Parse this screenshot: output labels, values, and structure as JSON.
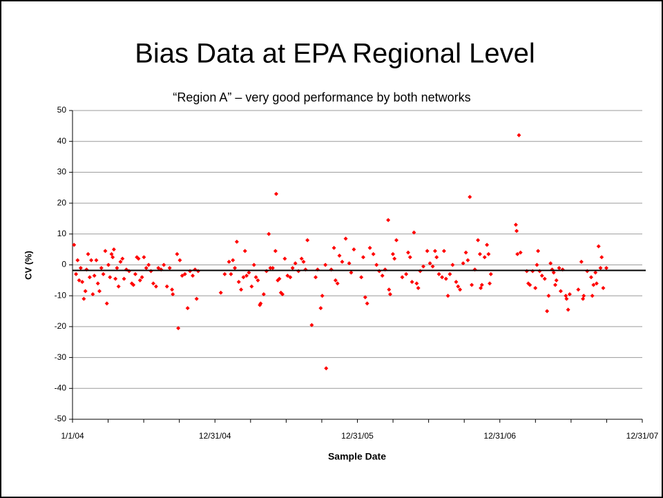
{
  "chart_data": {
    "type": "scatter",
    "title": "Bias Data at EPA Regional Level",
    "subtitle": "“Region A” – very good performance by both networks",
    "x_label": "Sample Date",
    "y_label": "CV (%)",
    "color": "#ff0000",
    "grid": true,
    "reference_line": -1.8,
    "ylim": [
      -50,
      50
    ],
    "yticks": [
      -50,
      -40,
      -30,
      -20,
      -10,
      0,
      10,
      20,
      30,
      40,
      50
    ],
    "xlim": [
      "2004-01-01",
      "2007-12-31"
    ],
    "xticks": [
      {
        "value": "2004-01-01",
        "label": "1/1/04"
      },
      {
        "value": "2004-12-31",
        "label": "12/31/04"
      },
      {
        "value": "2005-12-31",
        "label": "12/31/05"
      },
      {
        "value": "2006-12-31",
        "label": "12/31/06"
      },
      {
        "value": "2007-12-31",
        "label": "12/31/07"
      }
    ],
    "x": [
      "2004-01-05",
      "2004-01-10",
      "2004-01-14",
      "2004-01-18",
      "2004-01-22",
      "2004-01-26",
      "2004-01-30",
      "2004-02-03",
      "2004-02-06",
      "2004-02-10",
      "2004-02-14",
      "2004-02-18",
      "2004-02-22",
      "2004-02-26",
      "2004-03-02",
      "2004-03-06",
      "2004-03-10",
      "2004-03-15",
      "2004-03-20",
      "2004-03-25",
      "2004-03-29",
      "2004-04-02",
      "2004-04-06",
      "2004-04-10",
      "2004-04-13",
      "2004-04-16",
      "2004-04-20",
      "2004-04-24",
      "2004-04-28",
      "2004-05-03",
      "2004-05-08",
      "2004-05-12",
      "2004-05-18",
      "2004-05-25",
      "2004-06-01",
      "2004-06-05",
      "2004-06-10",
      "2004-06-14",
      "2004-06-18",
      "2004-06-22",
      "2004-06-27",
      "2004-07-02",
      "2004-07-08",
      "2004-07-14",
      "2004-07-20",
      "2004-07-26",
      "2004-08-02",
      "2004-08-08",
      "2004-08-15",
      "2004-08-22",
      "2004-08-30",
      "2004-09-06",
      "2004-09-12",
      "2004-09-14",
      "2004-09-25",
      "2004-09-28",
      "2004-10-02",
      "2004-10-08",
      "2004-10-15",
      "2004-10-22",
      "2004-10-28",
      "2004-11-04",
      "2004-11-10",
      "2004-11-14",
      "2004-11-18",
      "2005-01-15",
      "2005-01-25",
      "2005-02-05",
      "2005-02-10",
      "2005-02-15",
      "2005-02-20",
      "2005-02-25",
      "2005-03-02",
      "2005-03-08",
      "2005-03-14",
      "2005-03-18",
      "2005-03-22",
      "2005-03-28",
      "2005-04-04",
      "2005-04-10",
      "2005-04-15",
      "2005-04-20",
      "2005-04-25",
      "2005-04-27",
      "2005-05-05",
      "2005-05-12",
      "2005-05-18",
      "2005-05-22",
      "2005-05-28",
      "2005-06-04",
      "2005-06-06",
      "2005-06-10",
      "2005-06-14",
      "2005-06-18",
      "2005-06-22",
      "2005-06-28",
      "2005-07-05",
      "2005-07-12",
      "2005-07-18",
      "2005-07-25",
      "2005-08-02",
      "2005-08-10",
      "2005-08-15",
      "2005-08-20",
      "2005-08-25",
      "2005-09-05",
      "2005-09-15",
      "2005-09-20",
      "2005-09-28",
      "2005-10-02",
      "2005-10-10",
      "2005-10-12",
      "2005-10-25",
      "2005-11-01",
      "2005-11-05",
      "2005-11-10",
      "2005-11-15",
      "2005-11-22",
      "2005-12-01",
      "2005-12-10",
      "2005-12-15",
      "2005-12-22",
      "2006-01-10",
      "2006-01-15",
      "2006-01-20",
      "2006-01-25",
      "2006-02-01",
      "2006-02-10",
      "2006-02-18",
      "2006-02-25",
      "2006-03-05",
      "2006-03-12",
      "2006-03-20",
      "2006-03-22",
      "2006-03-25",
      "2006-04-01",
      "2006-04-05",
      "2006-04-10",
      "2006-04-25",
      "2006-05-05",
      "2006-05-10",
      "2006-05-15",
      "2006-05-20",
      "2006-05-25",
      "2006-06-01",
      "2006-06-05",
      "2006-06-10",
      "2006-06-18",
      "2006-06-28",
      "2006-07-05",
      "2006-07-12",
      "2006-07-18",
      "2006-07-22",
      "2006-07-28",
      "2006-08-05",
      "2006-08-10",
      "2006-08-15",
      "2006-08-20",
      "2006-08-25",
      "2006-09-01",
      "2006-09-10",
      "2006-09-15",
      "2006-09-20",
      "2006-09-28",
      "2006-10-05",
      "2006-10-10",
      "2006-10-15",
      "2006-10-20",
      "2006-10-28",
      "2006-11-05",
      "2006-11-10",
      "2006-11-12",
      "2006-11-15",
      "2006-11-22",
      "2006-11-28",
      "2006-12-02",
      "2006-12-05",
      "2006-12-08",
      "2007-02-10",
      "2007-02-12",
      "2007-02-14",
      "2007-02-18",
      "2007-02-22",
      "2007-03-10",
      "2007-03-14",
      "2007-03-18",
      "2007-03-25",
      "2007-04-01",
      "2007-04-05",
      "2007-04-08",
      "2007-04-12",
      "2007-04-18",
      "2007-04-25",
      "2007-05-01",
      "2007-05-05",
      "2007-05-10",
      "2007-05-14",
      "2007-05-18",
      "2007-05-22",
      "2007-05-25",
      "2007-06-01",
      "2007-06-05",
      "2007-06-10",
      "2007-06-18",
      "2007-06-20",
      "2007-06-24",
      "2007-06-28",
      "2007-07-20",
      "2007-07-28",
      "2007-08-01",
      "2007-08-03",
      "2007-08-12",
      "2007-08-22",
      "2007-08-25",
      "2007-08-28",
      "2007-09-02",
      "2007-09-05",
      "2007-09-10",
      "2007-09-15",
      "2007-09-18",
      "2007-09-22",
      "2007-09-30"
    ],
    "values": [
      6.5,
      -3,
      1.5,
      -5,
      -1,
      -5.5,
      -11,
      -8.5,
      -1.5,
      3.5,
      -4,
      1.5,
      -9.5,
      -3.5,
      1.5,
      -6,
      -8.5,
      -1,
      -3,
      4.5,
      -12.5,
      0,
      -4,
      3.5,
      2.5,
      5,
      -4.5,
      -1,
      -7,
      1,
      2,
      -4.5,
      -1.5,
      -2,
      -6,
      -6.5,
      -3,
      2.5,
      2,
      -5,
      -4,
      2.5,
      -1,
      0,
      -2,
      -6,
      -7,
      -1,
      -1.5,
      0,
      -7,
      -1,
      -8,
      -9.5,
      3.5,
      -20.5,
      1.5,
      -3.5,
      -3,
      -14,
      -2,
      -3.5,
      -1.5,
      -11,
      -2,
      -9,
      -3,
      1,
      -3,
      1.5,
      -1,
      7.5,
      -5.5,
      -8,
      -4,
      4.5,
      -3.5,
      -2.5,
      -7,
      0,
      -4,
      -5,
      -13,
      -12.5,
      -9.5,
      -2,
      10,
      -1,
      -1,
      4.5,
      23,
      -5,
      -4.5,
      -9,
      -9.5,
      2,
      -3.5,
      -4,
      -1,
      0.5,
      -2,
      2,
      1,
      -1.5,
      8,
      -19.5,
      -4,
      -1.5,
      -14,
      -10,
      0,
      -33.5,
      -1.5,
      5.5,
      -5,
      -6,
      3,
      1,
      8.5,
      0.5,
      -2.5,
      5,
      -4,
      2.5,
      -10.5,
      -12.5,
      5.5,
      3.5,
      0,
      -2,
      -3.5,
      -1.5,
      14.5,
      -8,
      -9.5,
      3.5,
      2,
      8,
      -4,
      -3,
      4,
      2.5,
      -5.5,
      10.5,
      -6,
      -7.5,
      -2,
      -0.5,
      4.5,
      0.5,
      -0.5,
      4.5,
      2.5,
      -3,
      -4,
      4.5,
      -4.5,
      -10,
      -3,
      0,
      -5.5,
      -7,
      -8,
      0.5,
      4,
      1.5,
      22,
      -6.5,
      -1.5,
      8,
      3.5,
      -7.5,
      -6.5,
      2.5,
      6.5,
      3.5,
      -6,
      -3,
      13,
      11,
      3.5,
      42,
      4,
      -2,
      -6,
      -6.5,
      -2,
      -7.5,
      0,
      4.5,
      -2,
      -3.5,
      -4.5,
      -15,
      -10,
      0.5,
      -1.5,
      -2.5,
      -6.5,
      -5,
      -1,
      -8.5,
      -1.5,
      -10,
      -11,
      -14.5,
      -9.5,
      -8,
      1,
      -11,
      -10,
      -2,
      -4,
      -10,
      -6.5,
      -2.5,
      -6,
      6,
      -1,
      2.5,
      -7.5,
      -1
    ]
  }
}
